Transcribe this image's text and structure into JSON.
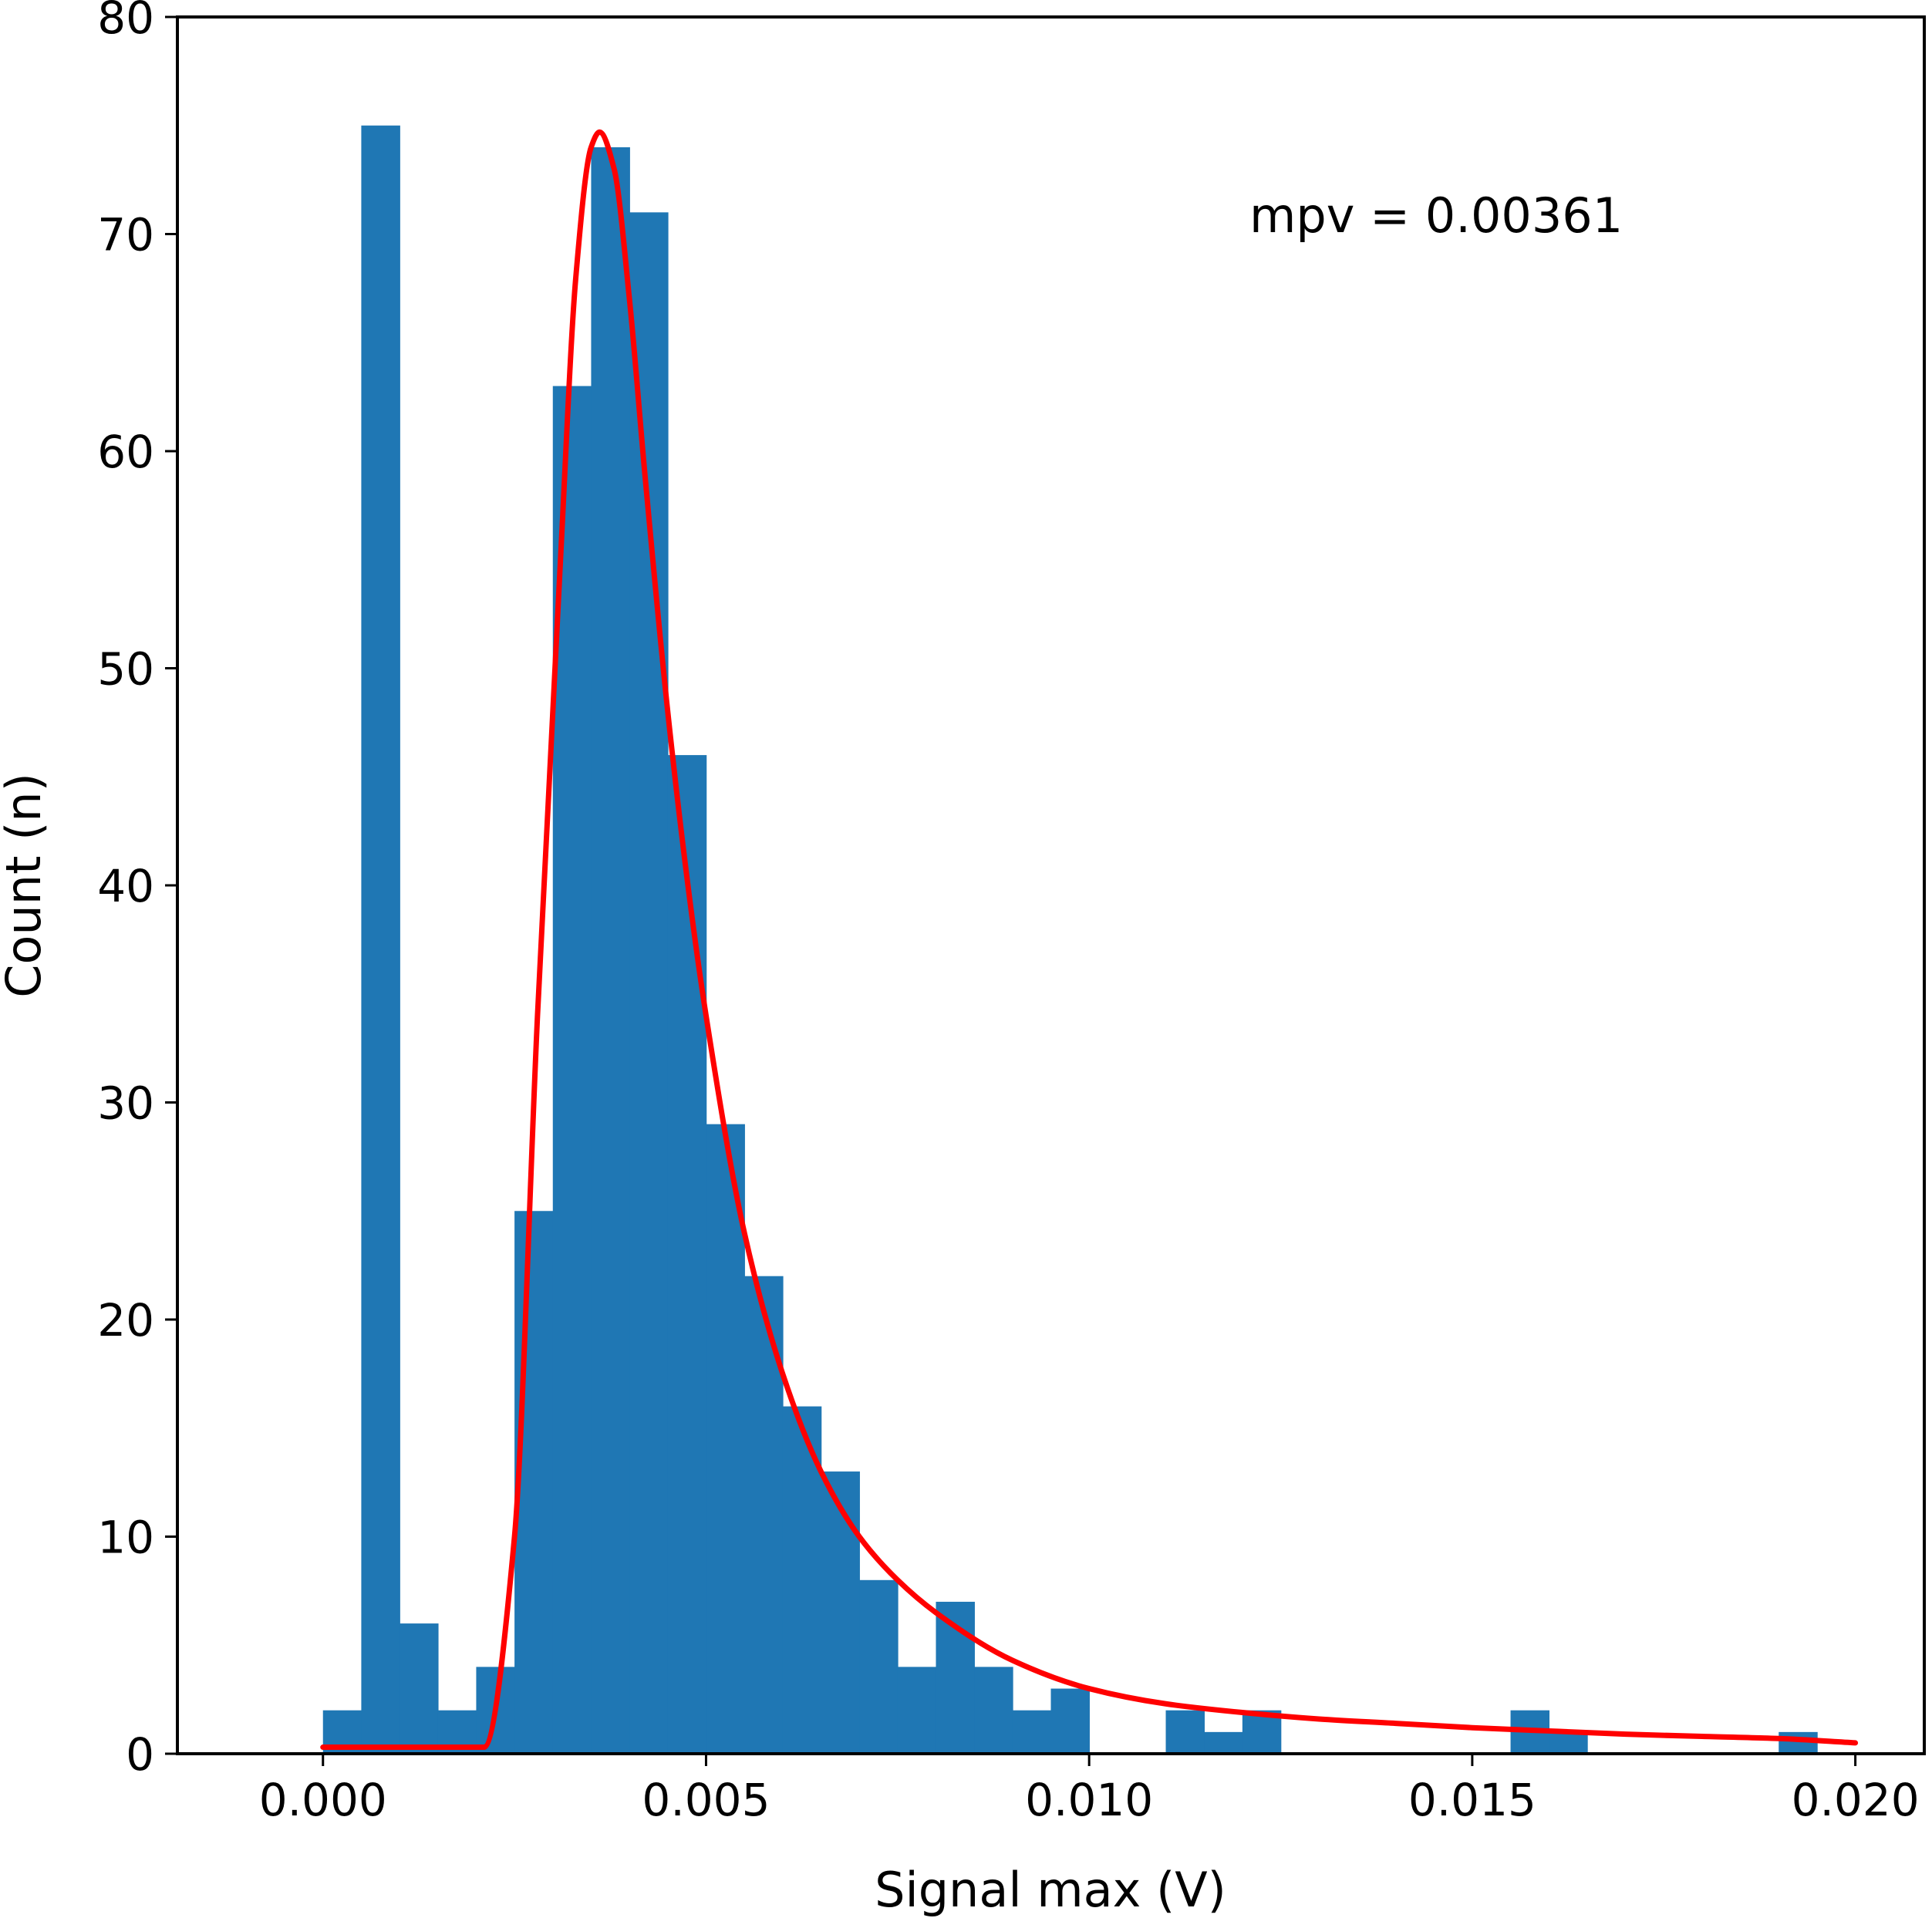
{
  "chart_data": {
    "type": "bar",
    "title": "",
    "xlabel": "Signal max (V)",
    "ylabel": "Count (n)",
    "xlim": [
      -0.0019,
      0.0209
    ],
    "ylim": [
      0,
      80
    ],
    "grid": false,
    "legend": "none",
    "x_ticks": [
      {
        "value": 0.0,
        "label": "0.000"
      },
      {
        "value": 0.005,
        "label": "0.005"
      },
      {
        "value": 0.01,
        "label": "0.010"
      },
      {
        "value": 0.015,
        "label": "0.015"
      },
      {
        "value": 0.02,
        "label": "0.020"
      }
    ],
    "y_ticks": [
      {
        "value": 0,
        "label": "0"
      },
      {
        "value": 10,
        "label": "10"
      },
      {
        "value": 20,
        "label": "20"
      },
      {
        "value": 30,
        "label": "30"
      },
      {
        "value": 40,
        "label": "40"
      },
      {
        "value": 50,
        "label": "50"
      },
      {
        "value": 60,
        "label": "60"
      },
      {
        "value": 70,
        "label": "70"
      },
      {
        "value": 80,
        "label": "80"
      }
    ],
    "bin_edges": [
      0.0,
      0.0005,
      0.001,
      0.0015,
      0.002,
      0.0025,
      0.003,
      0.0035,
      0.004,
      0.0045,
      0.005,
      0.0055,
      0.006,
      0.0065,
      0.007,
      0.0075,
      0.008,
      0.0085,
      0.009,
      0.0095,
      0.01,
      0.0105,
      0.011,
      0.0115,
      0.012,
      0.0125,
      0.013,
      0.0135,
      0.014,
      0.0145,
      0.015,
      0.0155,
      0.016,
      0.0165,
      0.017,
      0.0175,
      0.018,
      0.0185,
      0.019,
      0.0195
    ],
    "counts": [
      2,
      75,
      6,
      2,
      4,
      25,
      63,
      74,
      71,
      46,
      29,
      22,
      16,
      13,
      8,
      4,
      7,
      4,
      2,
      3,
      0,
      0,
      2,
      1,
      2,
      0,
      0,
      0,
      0,
      0,
      0,
      2,
      1,
      0,
      0,
      0,
      0,
      0,
      1
    ],
    "bar_color": "#1f77b4",
    "fit": {
      "type": "line",
      "color": "#ff0000",
      "x": [
        0.0,
        0.0021,
        0.0025,
        0.0028,
        0.0031,
        0.0033,
        0.0035,
        0.00361,
        0.0038,
        0.004,
        0.0042,
        0.0045,
        0.0048,
        0.005,
        0.0055,
        0.006,
        0.0065,
        0.007,
        0.0075,
        0.008,
        0.009,
        0.01,
        0.011,
        0.012,
        0.013,
        0.014,
        0.015,
        0.016,
        0.017,
        0.018,
        0.019,
        0.02
      ],
      "y": [
        0.3,
        0.3,
        10,
        34,
        55,
        68,
        74,
        74.7,
        73,
        67,
        59,
        48,
        39,
        34,
        24,
        17.5,
        13,
        10,
        8,
        6.5,
        4.3,
        3.0,
        2.3,
        1.9,
        1.6,
        1.4,
        1.2,
        1.05,
        0.9,
        0.8,
        0.7,
        0.5
      ]
    },
    "annotations": [
      {
        "text": "mpv = 0.00361",
        "x": 0.0125,
        "y": 70.5
      }
    ]
  }
}
